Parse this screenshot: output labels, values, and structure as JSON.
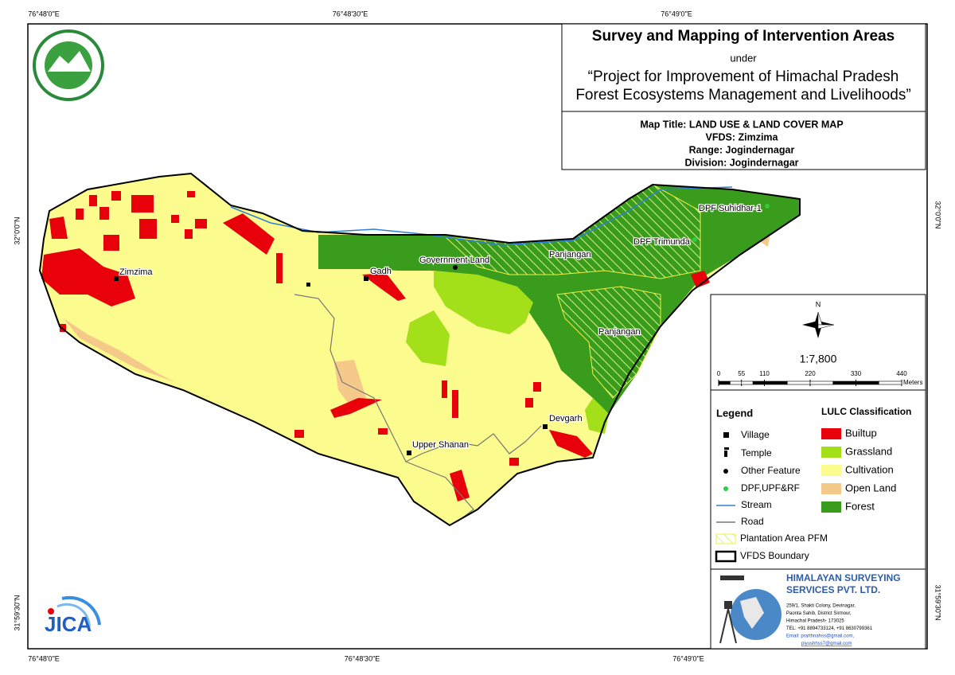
{
  "coordinate_labels": {
    "top": [
      "76°48'0\"E",
      "76°48'30\"E",
      "76°49'0\"E"
    ],
    "bottom": [
      "76°48'0\"E",
      "76°48'30\"E",
      "76°49'0\"E"
    ],
    "left": [
      "32°0'0\"N",
      "31°59'30\"N"
    ],
    "right": [
      "32°0'0\"N",
      "31°59'30\"N"
    ]
  },
  "header": {
    "title": "Survey and Mapping of Intervention Areas",
    "under": "under",
    "project_line1": "“Project for Improvement of Himachal Pradesh",
    "project_line2": "Forest Ecosystems Management and Livelihoods”"
  },
  "map_info": [
    "Map Title: LAND USE & LAND COVER MAP",
    "VFDS: Zimzima",
    "Range: Jogindernagar",
    "Division: Jogindernagar"
  ],
  "place_labels": [
    "Zimzima",
    "Gadh",
    "Government Land",
    "Panjangan",
    "DPF Trimunda",
    "DPF Suhidhar-1",
    "Panjangan",
    "Devgarh",
    "Upper Shanan"
  ],
  "north": "N",
  "scale": {
    "ratio": "1:7,800",
    "ticks": [
      0,
      55,
      110,
      220,
      330,
      440
    ],
    "unit": "Meters"
  },
  "legend": {
    "title": "Legend",
    "items": [
      "Village",
      "Temple",
      "Other Feature",
      "DPF,UPF&RF",
      "Stream",
      "Road",
      "Plantation Area PFM",
      "VFDS Boundary"
    ]
  },
  "lulc": {
    "title": "LULC Classification",
    "items": [
      {
        "label": "Builtup",
        "color": "#e8000b"
      },
      {
        "label": "Grassland",
        "color": "#a3e01a"
      },
      {
        "label": "Cultivation",
        "color": "#fbfb8e"
      },
      {
        "label": "Open Land",
        "color": "#f5c98a"
      },
      {
        "label": "Forest",
        "color": "#3a9c1c"
      }
    ]
  },
  "company": {
    "name_line1": "HIMALAYAN SURVEYING",
    "name_line2": "SERVICES PVT. LTD.",
    "address": [
      "259/1, Shakti Colony, Devinagar,",
      "Paonta Sahib, District Sirmour,",
      "Himachal Pradesh- 173025",
      "TEL: +91 8894733124, +91 8630799361",
      "Email: prarthnahss@gmail.com,",
      "piyushhss7@gmail.com"
    ]
  },
  "jica": "JICA"
}
